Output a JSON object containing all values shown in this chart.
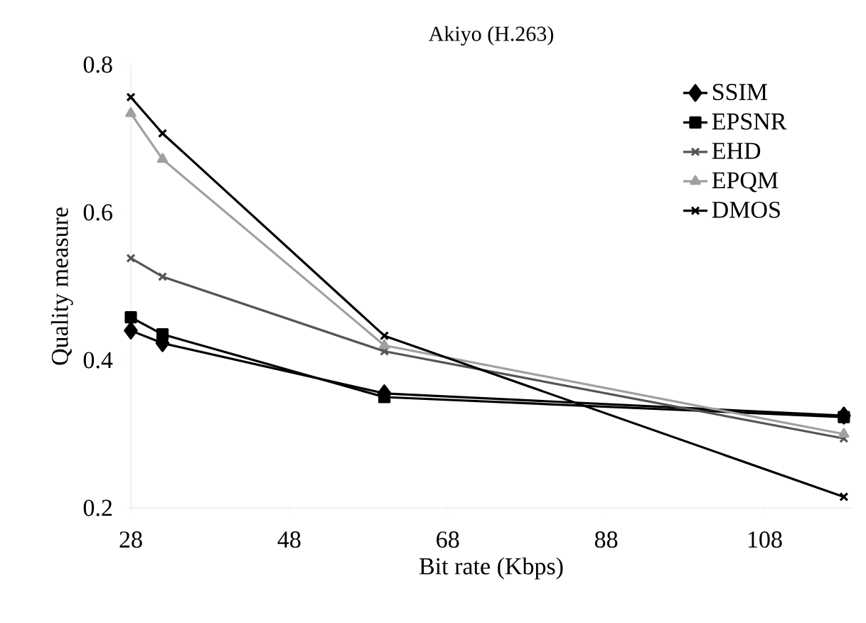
{
  "chart_data": {
    "type": "line",
    "title": "Akiyo (H.263)",
    "xlabel": "Bit rate (Kbps)",
    "ylabel": "Quality measure",
    "x": [
      28,
      32,
      60,
      118
    ],
    "series": [
      {
        "name": "SSIM",
        "color": "#000000",
        "marker": "diamond",
        "values": [
          0.44,
          0.423,
          0.355,
          0.325
        ]
      },
      {
        "name": "EPSNR",
        "color": "#000000",
        "marker": "square",
        "values": [
          0.458,
          0.435,
          0.35,
          0.323
        ]
      },
      {
        "name": "EHD",
        "color": "#555555",
        "marker": "cross",
        "values": [
          0.538,
          0.513,
          0.412,
          0.294
        ]
      },
      {
        "name": "EPQM",
        "color": "#a0a0a0",
        "marker": "triangle",
        "values": [
          0.734,
          0.672,
          0.42,
          0.3
        ]
      },
      {
        "name": "DMOS",
        "color": "#000000",
        "marker": "cross",
        "values": [
          0.756,
          0.707,
          0.433,
          0.215
        ]
      }
    ],
    "xlim": [
      28,
      119
    ],
    "xticks": [
      28,
      48,
      68,
      88,
      108
    ],
    "ylim": [
      0.2,
      0.8
    ],
    "yticks": [
      0.2,
      0.4,
      0.6,
      0.8
    ],
    "legend": "top right",
    "line_style": "solid",
    "grid": false
  }
}
